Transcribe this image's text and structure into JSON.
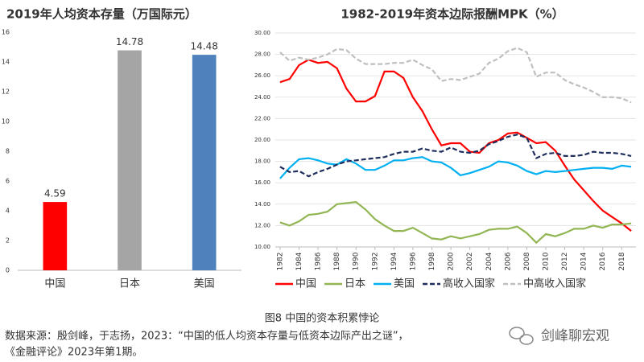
{
  "chart_data": [
    {
      "type": "bar",
      "title": "2019年人均资本存量（万国际元）",
      "categories": [
        "中国",
        "日本",
        "美国"
      ],
      "values": [
        4.59,
        14.78,
        14.48
      ],
      "colors": [
        "#ff0000",
        "#a5a5a5",
        "#4f81bd"
      ],
      "ylim": [
        0,
        16
      ],
      "yticks": [
        0,
        2,
        4,
        6,
        8,
        10,
        12,
        14,
        16
      ],
      "grid": false
    },
    {
      "type": "line",
      "title": "1982-2019年资本边际报酬MPK（%）",
      "x": [
        1982,
        1983,
        1984,
        1985,
        1986,
        1987,
        1988,
        1989,
        1990,
        1991,
        1992,
        1993,
        1994,
        1995,
        1996,
        1997,
        1998,
        1999,
        2000,
        2001,
        2002,
        2003,
        2004,
        2005,
        2006,
        2007,
        2008,
        2009,
        2010,
        2011,
        2012,
        2013,
        2014,
        2015,
        2016,
        2017,
        2018,
        2019
      ],
      "xlim": [
        1981.5,
        2019.5
      ],
      "xticks": [
        1982,
        1984,
        1986,
        1988,
        1990,
        1992,
        1994,
        1996,
        1998,
        2000,
        2002,
        2004,
        2006,
        2008,
        2010,
        2012,
        2014,
        2016,
        2018
      ],
      "ylim": [
        10,
        30
      ],
      "yticks": [
        {
          "value": 10,
          "label": "10.00"
        },
        {
          "value": 12,
          "label": "12.00"
        },
        {
          "value": 14,
          "label": "14.00"
        },
        {
          "value": 16,
          "label": "16.00"
        },
        {
          "value": 18,
          "label": "18.00"
        },
        {
          "value": 20,
          "label": "20.00"
        },
        {
          "value": 22,
          "label": "22.00"
        },
        {
          "value": 24,
          "label": "24.00"
        },
        {
          "value": 26,
          "label": "26.00"
        },
        {
          "value": 28,
          "label": "28.00"
        },
        {
          "value": 30,
          "label": "30.00"
        }
      ],
      "grid": true,
      "legend": "bottom",
      "series": [
        {
          "name": "中国",
          "color": "#ff0000",
          "dashed": false,
          "values": [
            25.4,
            25.7,
            27.0,
            27.5,
            27.2,
            27.3,
            26.7,
            24.8,
            23.6,
            23.6,
            24.1,
            26.4,
            26.4,
            25.8,
            24.0,
            22.7,
            21.0,
            19.5,
            19.7,
            19.7,
            18.9,
            18.8,
            19.7,
            20.0,
            20.6,
            20.7,
            20.2,
            19.7,
            19.8,
            19.0,
            17.6,
            16.3,
            15.3,
            14.3,
            13.4,
            12.8,
            12.2,
            11.5
          ]
        },
        {
          "name": "日本",
          "color": "#92b654",
          "dashed": false,
          "values": [
            12.3,
            12.0,
            12.4,
            13.0,
            13.1,
            13.3,
            14.0,
            14.1,
            14.2,
            13.5,
            12.6,
            12.0,
            11.5,
            11.5,
            11.8,
            11.3,
            10.8,
            10.7,
            11.0,
            10.8,
            11.0,
            11.2,
            11.6,
            11.7,
            11.7,
            11.9,
            11.3,
            10.4,
            11.2,
            11.0,
            11.3,
            11.7,
            11.7,
            12.0,
            11.8,
            12.1,
            12.1,
            12.2
          ]
        },
        {
          "name": "美国",
          "color": "#00b0f0",
          "dashed": false,
          "values": [
            16.4,
            17.4,
            18.2,
            18.3,
            18.1,
            17.8,
            17.7,
            18.2,
            17.8,
            17.2,
            17.2,
            17.6,
            18.1,
            18.1,
            18.3,
            18.4,
            18.0,
            17.9,
            17.4,
            16.7,
            16.9,
            17.2,
            17.5,
            18.0,
            17.9,
            17.6,
            17.1,
            16.8,
            17.1,
            17.0,
            17.1,
            17.2,
            17.3,
            17.4,
            17.4,
            17.3,
            17.6,
            17.5
          ]
        },
        {
          "name": "高收入国家",
          "color": "#1f2d5c",
          "dashed": true,
          "values": [
            17.5,
            17.0,
            17.1,
            16.6,
            17.0,
            17.3,
            17.7,
            18.0,
            18.1,
            18.2,
            18.3,
            18.4,
            18.7,
            18.9,
            18.9,
            19.2,
            19.0,
            18.9,
            19.3,
            18.9,
            18.8,
            19.0,
            19.6,
            19.9,
            20.3,
            20.5,
            20.2,
            18.3,
            18.7,
            18.8,
            18.5,
            18.5,
            18.6,
            18.9,
            18.8,
            18.8,
            18.7,
            18.5
          ]
        },
        {
          "name": "中高收入国家",
          "color": "#bfbfbf",
          "dashed": true,
          "values": [
            28.2,
            27.4,
            27.7,
            27.5,
            27.7,
            28.0,
            28.5,
            28.4,
            27.6,
            27.1,
            27.1,
            27.1,
            27.2,
            27.2,
            27.5,
            27.0,
            26.6,
            25.5,
            25.7,
            25.6,
            25.9,
            26.2,
            27.2,
            27.6,
            28.3,
            28.6,
            28.2,
            25.9,
            26.3,
            26.3,
            25.6,
            25.2,
            24.9,
            24.5,
            24.0,
            24.0,
            23.9,
            23.5
          ]
        }
      ]
    }
  ],
  "caption": "图8 中国的资本积累悖论",
  "source": [
    "数据来源：殷剑峰，于志扬，2023：“中国的低人均资本存量与低资本边际产出之谜”，",
    "《金融评论》2023年第1期。"
  ],
  "watermark": "剑峰聊宏观"
}
